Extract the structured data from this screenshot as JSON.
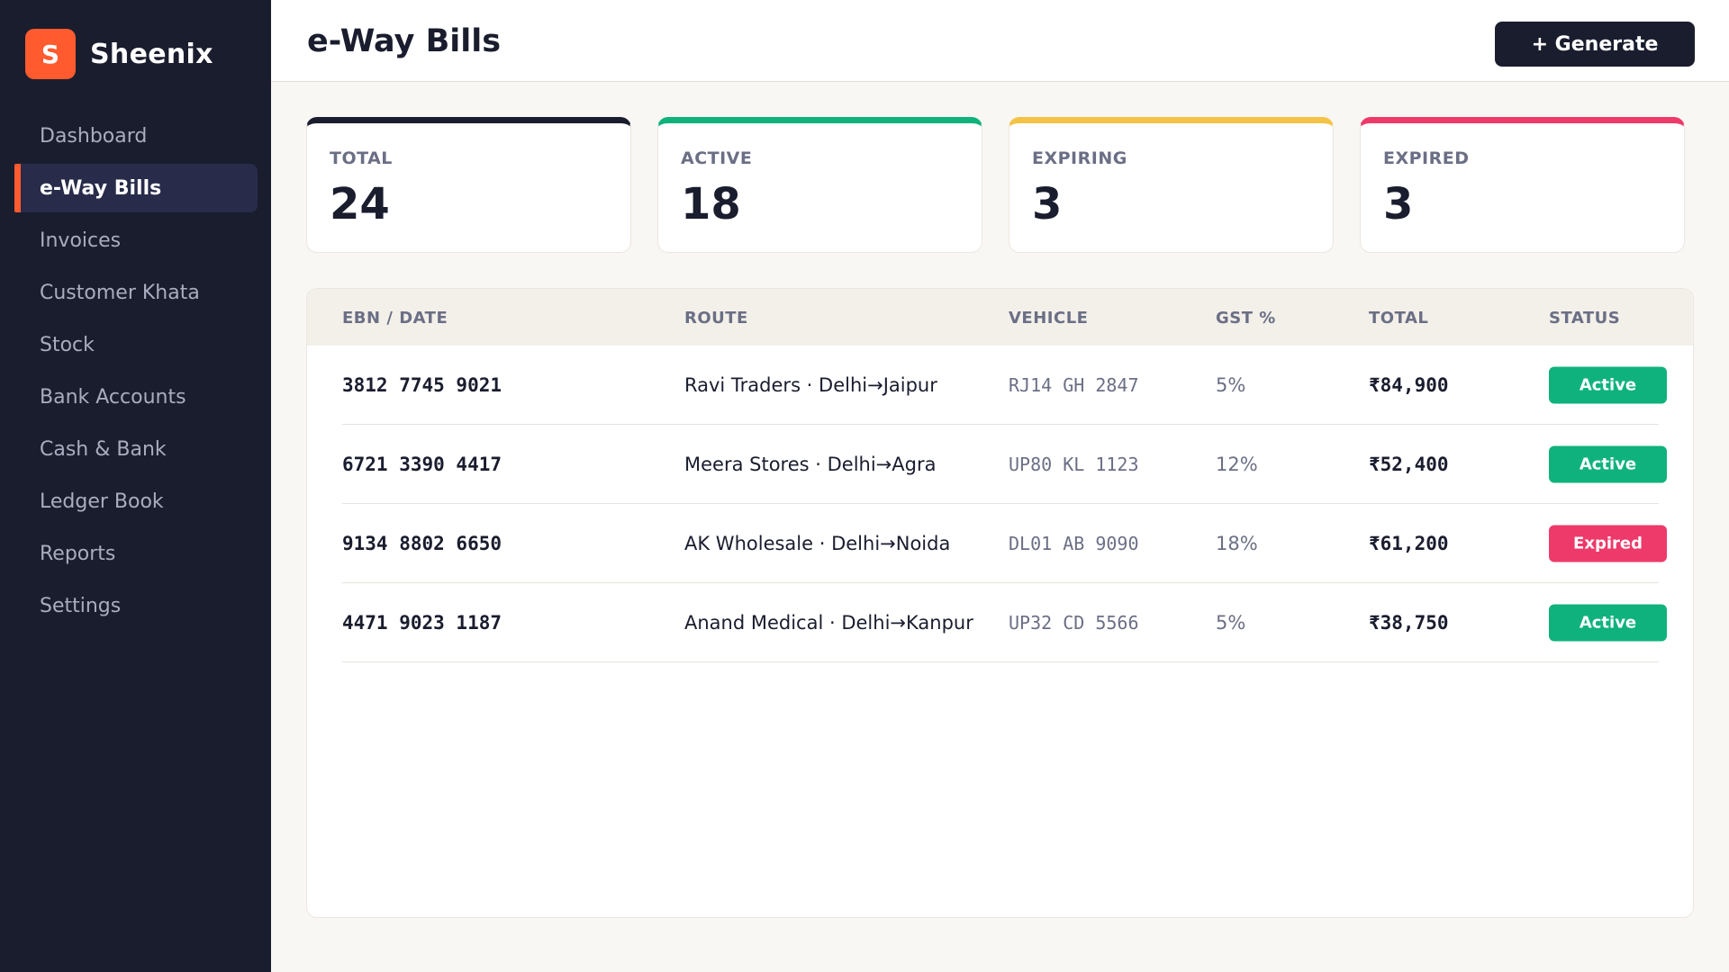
{
  "app": {
    "logo_letter": "S",
    "name": "Sheenix",
    "brand_color": "#ff5b2e"
  },
  "sidebar": {
    "items": [
      {
        "label": "Dashboard",
        "active": false
      },
      {
        "label": "e-Way Bills",
        "active": true
      },
      {
        "label": "Invoices",
        "active": false
      },
      {
        "label": "Customer Khata",
        "active": false
      },
      {
        "label": "Stock",
        "active": false
      },
      {
        "label": "Bank Accounts",
        "active": false
      },
      {
        "label": "Cash & Bank",
        "active": false
      },
      {
        "label": "Ledger Book",
        "active": false
      },
      {
        "label": "Reports",
        "active": false
      },
      {
        "label": "Settings",
        "active": false
      }
    ]
  },
  "header": {
    "title": "e-Way Bills",
    "generate_label": "+ Generate"
  },
  "stats": [
    {
      "label": "TOTAL",
      "value": "24",
      "color": "#1a1d2e"
    },
    {
      "label": "ACTIVE",
      "value": "18",
      "color": "#0fb27d"
    },
    {
      "label": "EXPIRING",
      "value": "3",
      "color": "#f5c344"
    },
    {
      "label": "EXPIRED",
      "value": "3",
      "color": "#ee3a6a"
    }
  ],
  "table": {
    "columns": [
      "EBN / DATE",
      "ROUTE",
      "VEHICLE",
      "GST %",
      "TOTAL",
      "STATUS"
    ],
    "rows": [
      {
        "ebn": "3812 7745 9021",
        "route": "Ravi Traders · Delhi→Jaipur",
        "vehicle": "RJ14 GH 2847",
        "gst": "5%",
        "total": "₹84,900",
        "status": "Active"
      },
      {
        "ebn": "6721 3390 4417",
        "route": "Meera Stores · Delhi→Agra",
        "vehicle": "UP80 KL 1123",
        "gst": "12%",
        "total": "₹52,400",
        "status": "Active"
      },
      {
        "ebn": "9134 8802 6650",
        "route": "AK Wholesale · Delhi→Noida",
        "vehicle": "DL01 AB 9090",
        "gst": "18%",
        "total": "₹61,200",
        "status": "Expired"
      },
      {
        "ebn": "4471 9023 1187",
        "route": "Anand Medical · Delhi→Kanpur",
        "vehicle": "UP32 CD 5566",
        "gst": "5%",
        "total": "₹38,750",
        "status": "Active"
      }
    ]
  },
  "status_colors": {
    "Active": "#0fb27d",
    "Expired": "#ee3a6a"
  }
}
